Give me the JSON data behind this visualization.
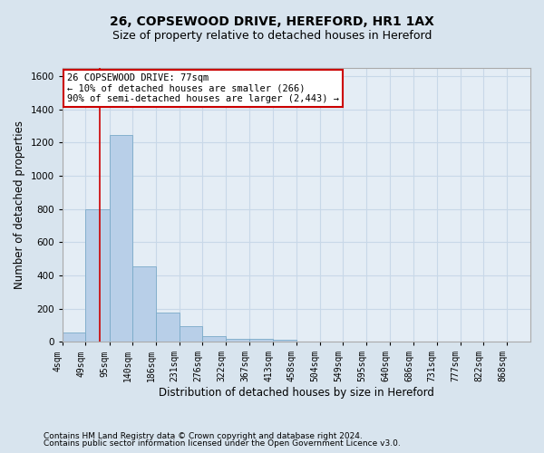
{
  "title_line1": "26, COPSEWOOD DRIVE, HEREFORD, HR1 1AX",
  "title_line2": "Size of property relative to detached houses in Hereford",
  "xlabel": "Distribution of detached houses by size in Hereford",
  "ylabel": "Number of detached properties",
  "footnote1": "Contains HM Land Registry data © Crown copyright and database right 2024.",
  "footnote2": "Contains public sector information licensed under the Open Government Licence v3.0.",
  "bar_edges": [
    4,
    49,
    95,
    140,
    186,
    231,
    276,
    322,
    367,
    413,
    458,
    504,
    549,
    595,
    640,
    686,
    731,
    777,
    822,
    868,
    913
  ],
  "bar_heights": [
    55,
    800,
    1245,
    455,
    175,
    95,
    35,
    20,
    15,
    10,
    0,
    0,
    0,
    0,
    0,
    0,
    0,
    0,
    0,
    0
  ],
  "bar_color": "#b8cfe8",
  "bar_edge_color": "#7aaac8",
  "property_size": 77,
  "property_line_color": "#cc0000",
  "annotation_line1": "26 COPSEWOOD DRIVE: 77sqm",
  "annotation_line2": "← 10% of detached houses are smaller (266)",
  "annotation_line3": "90% of semi-detached houses are larger (2,443) →",
  "annotation_box_color": "#ffffff",
  "annotation_box_edge": "#cc0000",
  "ylim": [
    0,
    1650
  ],
  "yticks": [
    0,
    200,
    400,
    600,
    800,
    1000,
    1200,
    1400,
    1600
  ],
  "bg_color": "#d8e4ee",
  "plot_bg_color": "#e4edf5",
  "grid_color": "#c8d8e8",
  "title_fontsize": 10,
  "subtitle_fontsize": 9,
  "tick_label_fontsize": 7,
  "xlabel_fontsize": 8.5,
  "ylabel_fontsize": 8.5,
  "footnote_fontsize": 6.5
}
